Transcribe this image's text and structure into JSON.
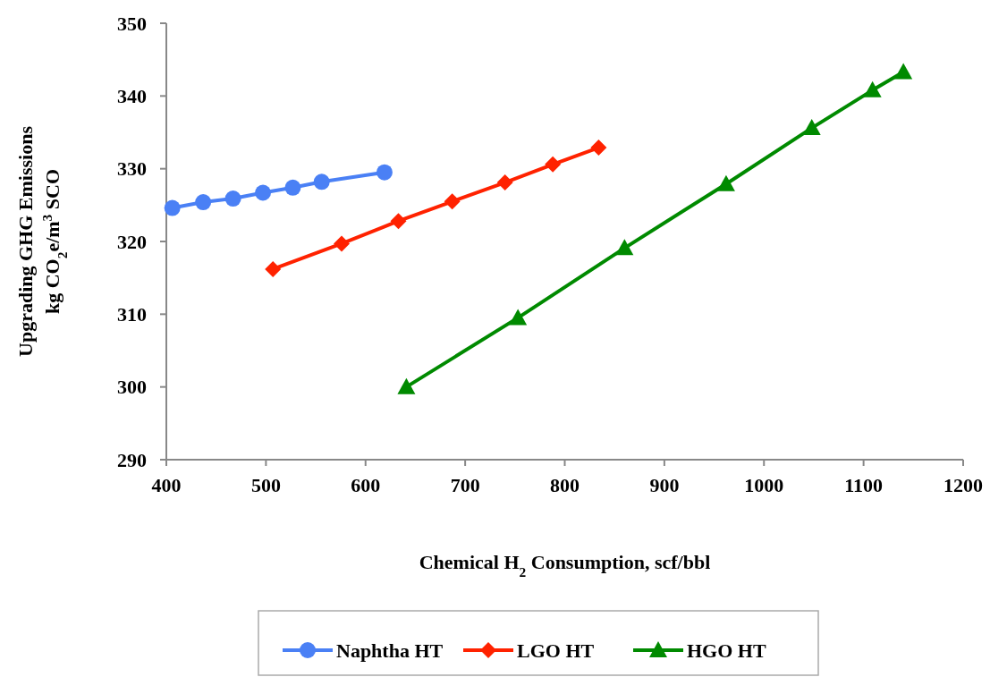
{
  "chart_data": {
    "type": "line",
    "xlabel": "Chemical H$_{2}$ Consumption, scf/bbl",
    "ylabel": "Upgrading GHG Emissions\nkg CO$_{2}$e/m$^{3}$ SCO",
    "xlim": [
      400,
      1200
    ],
    "xticks": [
      400,
      500,
      600,
      700,
      800,
      900,
      1000,
      1100,
      1200
    ],
    "ylim": [
      290,
      350
    ],
    "yticks": [
      290,
      300,
      310,
      320,
      330,
      340,
      350
    ],
    "grid": false,
    "legend": "bottom",
    "series": [
      {
        "name": "Naphtha HT",
        "color": "#4a80f5",
        "marker": "circle",
        "x": [
          406,
          437,
          467,
          497,
          527,
          556,
          619
        ],
        "values": [
          324.6,
          325.4,
          325.9,
          326.7,
          327.4,
          328.2,
          329.5
        ]
      },
      {
        "name": "LGO HT",
        "color": "#ff2200",
        "marker": "diamond",
        "x": [
          507,
          576,
          633,
          687,
          740,
          788,
          834
        ],
        "values": [
          316.2,
          319.7,
          322.8,
          325.5,
          328.1,
          330.6,
          332.9
        ]
      },
      {
        "name": "HGO HT",
        "color": "#008a00",
        "marker": "triangle",
        "x": [
          641,
          753,
          860,
          962,
          1048,
          1109,
          1140
        ],
        "values": [
          300.0,
          309.5,
          319.1,
          327.9,
          335.6,
          340.8,
          343.3
        ]
      }
    ]
  }
}
